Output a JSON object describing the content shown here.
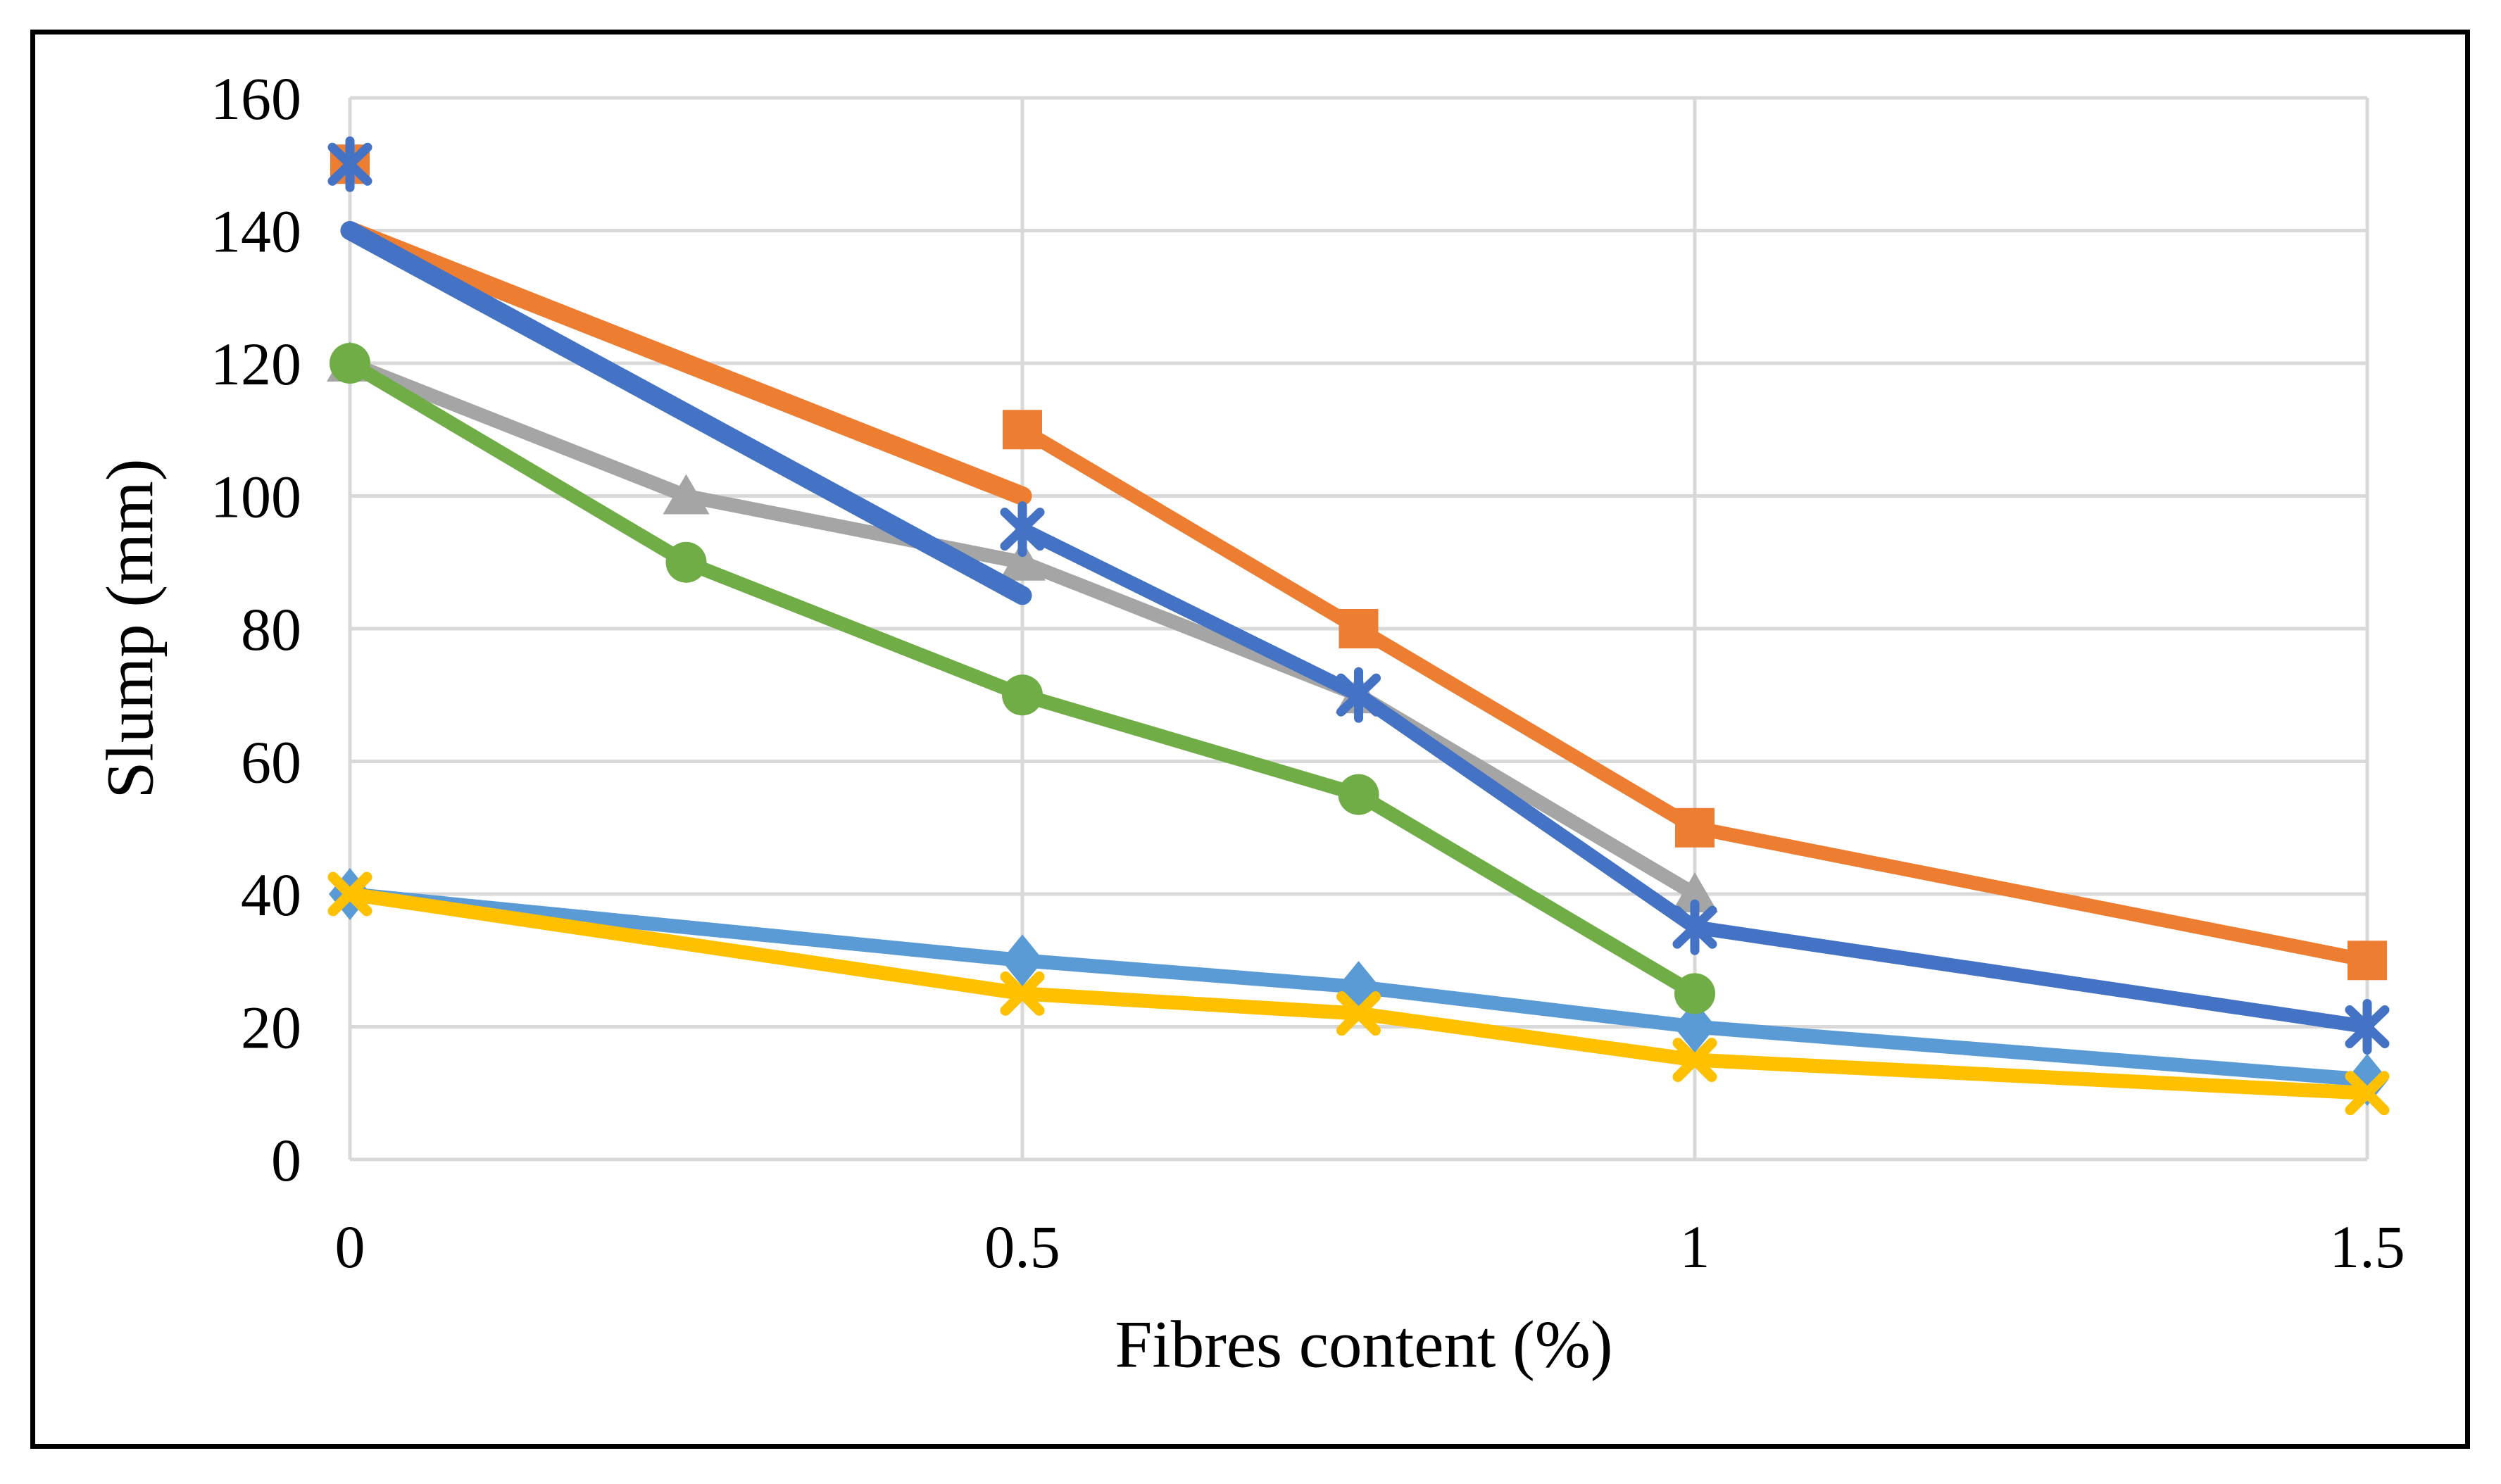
{
  "chart_data": {
    "type": "line",
    "title": "",
    "xlabel": "Fibres content (%)",
    "ylabel": "Slump (mm)",
    "xlim": [
      0,
      1.5
    ],
    "ylim": [
      0,
      160
    ],
    "grid": "both",
    "legend_position": "none",
    "gridline_color": "#D9D9D9",
    "frame_color": "#000000",
    "x_ticks": [
      {
        "v": 0,
        "label": "0"
      },
      {
        "v": 0.5,
        "label": "0.5"
      },
      {
        "v": 1,
        "label": "1"
      },
      {
        "v": 1.5,
        "label": "1.5"
      }
    ],
    "y_ticks": [
      {
        "v": 0,
        "label": "0"
      },
      {
        "v": 20,
        "label": "20"
      },
      {
        "v": 40,
        "label": "40"
      },
      {
        "v": 60,
        "label": "60"
      },
      {
        "v": 80,
        "label": "80"
      },
      {
        "v": 100,
        "label": "100"
      },
      {
        "v": 120,
        "label": "120"
      },
      {
        "v": 140,
        "label": "140"
      },
      {
        "v": 160,
        "label": "160"
      }
    ],
    "series": [
      {
        "name": "orange-plain-line",
        "color": "#ED7D31",
        "marker": "none",
        "line_width": 27,
        "points": [
          [
            0,
            140
          ],
          [
            0.5,
            100
          ]
        ]
      },
      {
        "name": "lightblue-diamond-series",
        "color": "#5B9BD5",
        "marker": "diamond",
        "line_width": 20,
        "points": [
          [
            0,
            40
          ],
          [
            0.5,
            30
          ],
          [
            0.75,
            26
          ],
          [
            1,
            20
          ],
          [
            1.5,
            12
          ]
        ]
      },
      {
        "name": "gray-triangle-series",
        "color": "#A5A5A5",
        "marker": "triangle",
        "line_width": 20,
        "points": [
          [
            0,
            120
          ],
          [
            0.25,
            100
          ],
          [
            0.5,
            90
          ],
          [
            0.75,
            70
          ],
          [
            1,
            40
          ]
        ]
      },
      {
        "name": "blue-plain-line",
        "color": "#4472C4",
        "marker": "none",
        "line_width": 27,
        "points": [
          [
            0,
            140
          ],
          [
            0.5,
            85
          ]
        ]
      },
      {
        "name": "green-circle-series",
        "color": "#70AD47",
        "marker": "circle",
        "line_width": 20,
        "points": [
          [
            0,
            120
          ],
          [
            0.25,
            90
          ],
          [
            0.5,
            70
          ],
          [
            0.75,
            55
          ],
          [
            1,
            25
          ]
        ]
      },
      {
        "name": "orange-square-series",
        "color": "#ED7D31",
        "marker": "square",
        "line_width": 20,
        "points": [
          [
            0,
            150
          ],
          [
            0.5,
            110
          ],
          [
            0.75,
            80
          ],
          [
            1,
            50
          ],
          [
            1.5,
            30
          ]
        ],
        "segments": [
          [
            1,
            2,
            3,
            4
          ]
        ]
      },
      {
        "name": "blue-star-series",
        "color": "#4472C4",
        "marker": "star",
        "line_width": 20,
        "points": [
          [
            0,
            150
          ],
          [
            0.5,
            95
          ],
          [
            0.75,
            70
          ],
          [
            1,
            35
          ],
          [
            1.5,
            20
          ]
        ],
        "segments": [
          [
            1,
            2,
            3,
            4
          ]
        ]
      },
      {
        "name": "yellow-x-series",
        "color": "#FFC000",
        "marker": "x",
        "line_width": 20,
        "points": [
          [
            0,
            40
          ],
          [
            0.5,
            25
          ],
          [
            0.75,
            22
          ],
          [
            1,
            15
          ],
          [
            1.5,
            10
          ]
        ]
      }
    ]
  }
}
